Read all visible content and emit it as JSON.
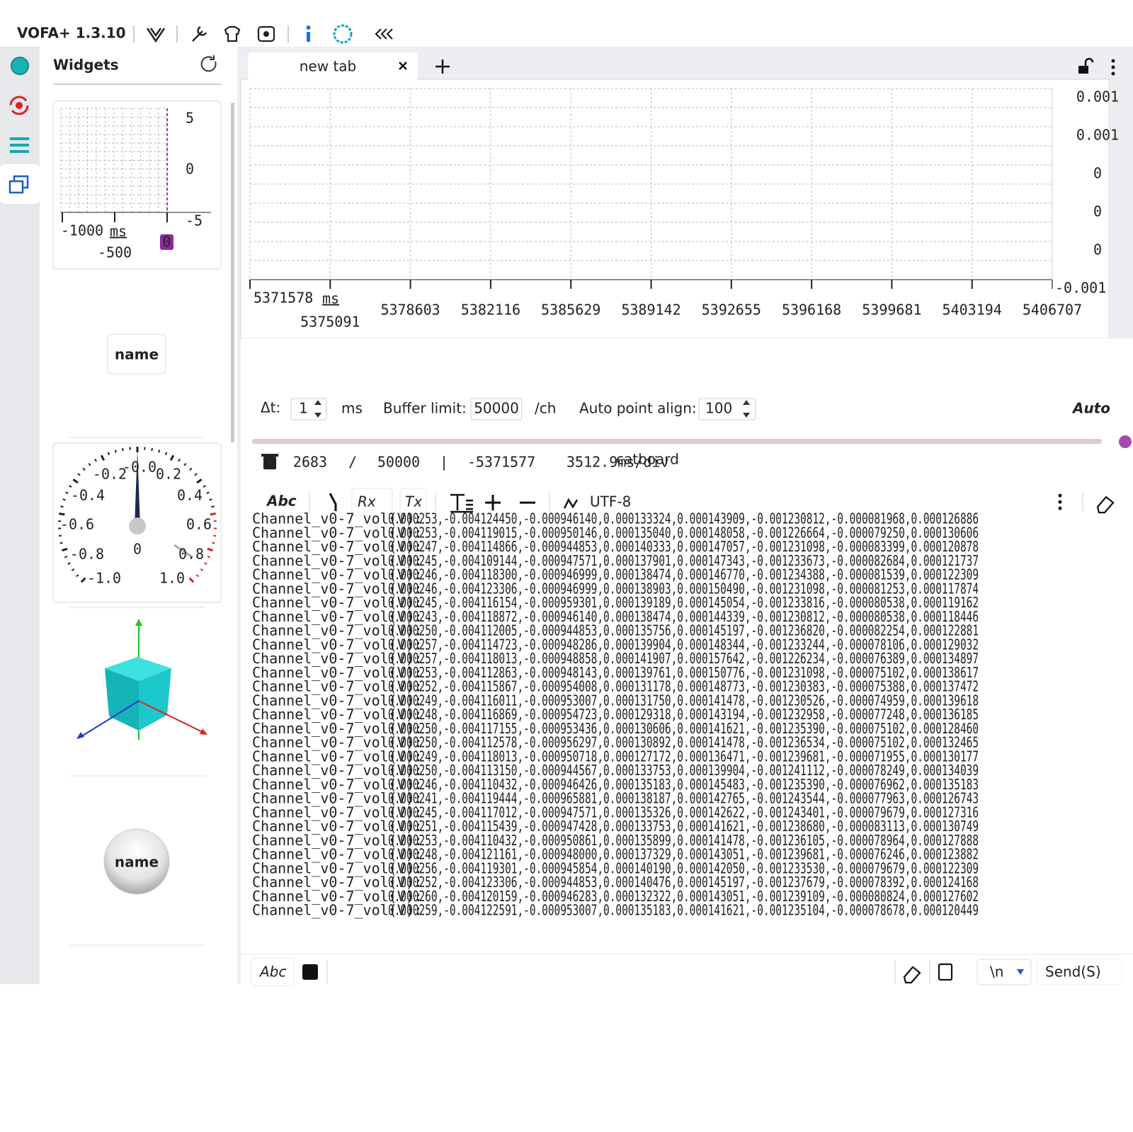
{
  "app": {
    "title": "VOFA+ 1.3.10"
  },
  "sidebar": {
    "title": "Widgets",
    "mini_plot": {
      "y_ticks": [
        "5",
        "0",
        "-5"
      ],
      "x_ticks": [
        "-1000",
        "-500"
      ],
      "x_unit": "ms",
      "marker": "0"
    },
    "button": "name",
    "gauge": {
      "labels": [
        "-1.0",
        "-0.8",
        "-0.6",
        "-0.4",
        "-0.2",
        "-0.0",
        "0.2",
        "0.4",
        "0.6",
        "0.8",
        "1.0"
      ],
      "value": "0"
    },
    "round_button": "name"
  },
  "tab": {
    "title": "new tab"
  },
  "plot": {
    "y_labels": [
      "0.001",
      "0.001",
      "0",
      "0",
      "0",
      "-0.001"
    ],
    "x_ticks": [
      "5371578",
      "5375091",
      "5378603",
      "5382116",
      "5385629",
      "5389142",
      "5392655",
      "5396168",
      "5399681",
      "5403194",
      "5406707"
    ],
    "x_unit": "ms"
  },
  "controls": {
    "dt_label": "Δt:",
    "dt_value": "1",
    "dt_unit": "ms",
    "buffer_label": "Buffer limit:",
    "buffer_value": "50000",
    "buffer_unit": "/ch",
    "align_label": "Auto point align:",
    "align_value": "100",
    "auto": "Auto"
  },
  "status": {
    "count": "2683",
    "sep1": "/",
    "limit": "50000",
    "sep2": "|",
    "offset": "-5371577",
    "scale": "3512.9ms/div",
    "overlay": "catboard"
  },
  "toolbar": {
    "format": "Abc",
    "rx": "Rx",
    "tx": "Tx",
    "encoding": "UTF-8"
  },
  "log": {
    "rows": [
      {
        "channel": "Channel_v0-7_vol(V):",
        "data": "0.000253,-0.004124450,-0.000946140,0.000133324,0.000143909,-0.001230812,-0.000081968,0.000126886"
      },
      {
        "channel": "Channel_v0-7_vol(V):",
        "data": "0.000253,-0.004119015,-0.000950146,0.000135040,0.000148058,-0.001226664,-0.000079250,0.000130606"
      },
      {
        "channel": "Channel_v0-7_vol(V):",
        "data": "0.000247,-0.004114866,-0.000944853,0.000140333,0.000147057,-0.001231098,-0.000083399,0.000120878"
      },
      {
        "channel": "Channel_v0-7_vol(V):",
        "data": "0.000245,-0.004109144,-0.000947571,0.000137901,0.000147343,-0.001233673,-0.000082684,0.000121737"
      },
      {
        "channel": "Channel_v0-7_vol(V):",
        "data": "0.000246,-0.004118300,-0.000946999,0.000138474,0.000146770,-0.001234388,-0.000081539,0.000122309"
      },
      {
        "channel": "Channel_v0-7_vol(V):",
        "data": "0.000246,-0.004123306,-0.000946999,0.000138903,0.000150490,-0.001231098,-0.000081253,0.000117874"
      },
      {
        "channel": "Channel_v0-7_vol(V):",
        "data": "0.000245,-0.004116154,-0.000959301,0.000139189,0.000145054,-0.001233816,-0.000080538,0.000119162"
      },
      {
        "channel": "Channel_v0-7_vol(V):",
        "data": "0.000243,-0.004118872,-0.000946140,0.000138474,0.000144339,-0.001230812,-0.000080538,0.000118446"
      },
      {
        "channel": "Channel_v0-7_vol(V):",
        "data": "0.000250,-0.004112005,-0.000944853,0.000135756,0.000145197,-0.001236820,-0.000082254,0.000122881"
      },
      {
        "channel": "Channel_v0-7_vol(V):",
        "data": "0.000257,-0.004114723,-0.000948286,0.000139904,0.000148344,-0.001233244,-0.000078106,0.000129032"
      },
      {
        "channel": "Channel_v0-7_vol(V):",
        "data": "0.000257,-0.004118013,-0.000948858,0.000141907,0.000157642,-0.001226234,-0.000076389,0.000134897"
      },
      {
        "channel": "Channel_v0-7_vol(V):",
        "data": "0.000253,-0.004112863,-0.000948143,0.000139761,0.000150776,-0.001231098,-0.000075102,0.000138617"
      },
      {
        "channel": "Channel_v0-7_vol(V):",
        "data": "0.000252,-0.004115867,-0.000954008,0.000131178,0.000148773,-0.001230383,-0.000075388,0.000137472"
      },
      {
        "channel": "Channel_v0-7_vol(V):",
        "data": "0.000249,-0.004116011,-0.000953007,0.000131750,0.000141478,-0.001230526,-0.000074959,0.000139618"
      },
      {
        "channel": "Channel_v0-7_vol(V):",
        "data": "0.000248,-0.004116869,-0.000954723,0.000129318,0.000143194,-0.001232958,-0.000077248,0.000136185"
      },
      {
        "channel": "Channel_v0-7_vol(V):",
        "data": "0.000250,-0.004117155,-0.000953436,0.000130606,0.000141621,-0.001235390,-0.000075102,0.000128460"
      },
      {
        "channel": "Channel_v0-7_vol(V):",
        "data": "0.000250,-0.004112578,-0.000956297,0.000130892,0.000141478,-0.001236534,-0.000075102,0.000132465"
      },
      {
        "channel": "Channel_v0-7_vol(V):",
        "data": "0.000249,-0.004118013,-0.000950718,0.000127172,0.000136471,-0.001239681,-0.000071955,0.000130177"
      },
      {
        "channel": "Channel_v0-7_vol(V):",
        "data": "0.000250,-0.004113150,-0.000944567,0.000133753,0.000139904,-0.001241112,-0.000078249,0.000134039"
      },
      {
        "channel": "Channel_v0-7_vol(V):",
        "data": "0.000246,-0.004110432,-0.000946426,0.000135183,0.000145483,-0.001235390,-0.000076962,0.000135183"
      },
      {
        "channel": "Channel_v0-7_vol(V):",
        "data": "0.000241,-0.004119444,-0.000965881,0.000138187,0.000142765,-0.001243544,-0.000077963,0.000126743"
      },
      {
        "channel": "Channel_v0-7_vol(V):",
        "data": "0.000245,-0.004117012,-0.000947571,0.000135326,0.000142622,-0.001243401,-0.000079679,0.000127316"
      },
      {
        "channel": "Channel_v0-7_vol(V):",
        "data": "0.000251,-0.004115439,-0.000947428,0.000133753,0.000141621,-0.001238680,-0.000083113,0.000130749"
      },
      {
        "channel": "Channel_v0-7_vol(V):",
        "data": "0.000253,-0.004110432,-0.000950861,0.000135899,0.000141478,-0.001236105,-0.000078964,0.000127888"
      },
      {
        "channel": "Channel_v0-7_vol(V):",
        "data": "0.000248,-0.004121161,-0.000948000,0.000137329,0.000143051,-0.001239681,-0.000076246,0.000123882"
      },
      {
        "channel": "Channel_v0-7_vol(V):",
        "data": "0.000256,-0.004119301,-0.000945854,0.000140190,0.000142050,-0.001233530,-0.000079679,0.000122309"
      },
      {
        "channel": "Channel_v0-7_vol(V):",
        "data": "0.000252,-0.004123306,-0.000944853,0.000140476,0.000145197,-0.001237679,-0.000078392,0.000124168"
      },
      {
        "channel": "Channel_v0-7_vol(V):",
        "data": "0.000260,-0.004120159,-0.000946283,0.000132322,0.000143051,-0.001239109,-0.000080824,0.000127602"
      },
      {
        "channel": "Channel_v0-7_vol(V):",
        "data": "0.000259,-0.004122591,-0.000953007,0.000135183,0.000141621,-0.001235104,-0.000078678,0.000120449"
      }
    ]
  },
  "send_bar": {
    "format": "Abc",
    "line_end": "\\n",
    "send": "Send(S)"
  }
}
